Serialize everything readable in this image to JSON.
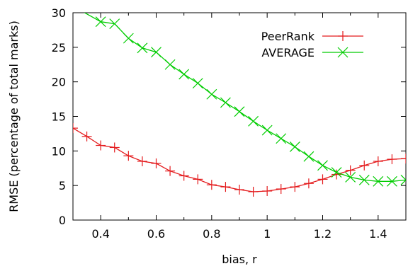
{
  "chart_data": {
    "type": "line",
    "title": "",
    "xlabel": "bias, r",
    "ylabel": "RMSE (percentage of total marks)",
    "xlim": [
      0.3,
      1.5
    ],
    "ylim": [
      0,
      30
    ],
    "x_ticks": [
      "0.4",
      "0.6",
      "0.8",
      "1",
      "1.2",
      "1.4"
    ],
    "y_ticks": [
      "0",
      "5",
      "10",
      "15",
      "20",
      "25",
      "30"
    ],
    "grid": false,
    "legend_position": "top-right",
    "series": [
      {
        "name": "PeerRank",
        "color": "#e41a1c",
        "marker": "plus",
        "x": [
          0.3,
          0.35,
          0.4,
          0.45,
          0.5,
          0.55,
          0.6,
          0.65,
          0.7,
          0.75,
          0.8,
          0.85,
          0.9,
          0.95,
          1.0,
          1.05,
          1.1,
          1.15,
          1.2,
          1.25,
          1.3,
          1.35,
          1.4,
          1.45,
          1.5
        ],
        "y": [
          13.3,
          12.1,
          10.8,
          10.5,
          9.3,
          8.5,
          8.2,
          7.1,
          6.4,
          5.9,
          5.1,
          4.8,
          4.4,
          4.1,
          4.2,
          4.5,
          4.8,
          5.3,
          5.9,
          6.6,
          7.2,
          7.9,
          8.5,
          8.8,
          8.9
        ]
      },
      {
        "name": "AVERAGE",
        "color": "#00cc00",
        "marker": "cross",
        "x": [
          0.4,
          0.45,
          0.5,
          0.55,
          0.6,
          0.65,
          0.7,
          0.75,
          0.8,
          0.85,
          0.9,
          0.95,
          1.0,
          1.05,
          1.1,
          1.15,
          1.2,
          1.25,
          1.3,
          1.35,
          1.4,
          1.45,
          1.5
        ],
        "y": [
          28.7,
          28.4,
          26.3,
          24.9,
          24.3,
          22.5,
          21.1,
          19.8,
          18.2,
          17.0,
          15.7,
          14.3,
          13.0,
          11.8,
          10.6,
          9.2,
          7.9,
          6.9,
          6.2,
          5.8,
          5.6,
          5.6,
          5.8
        ],
        "continues_above_top_from_x": 0.32
      }
    ]
  }
}
